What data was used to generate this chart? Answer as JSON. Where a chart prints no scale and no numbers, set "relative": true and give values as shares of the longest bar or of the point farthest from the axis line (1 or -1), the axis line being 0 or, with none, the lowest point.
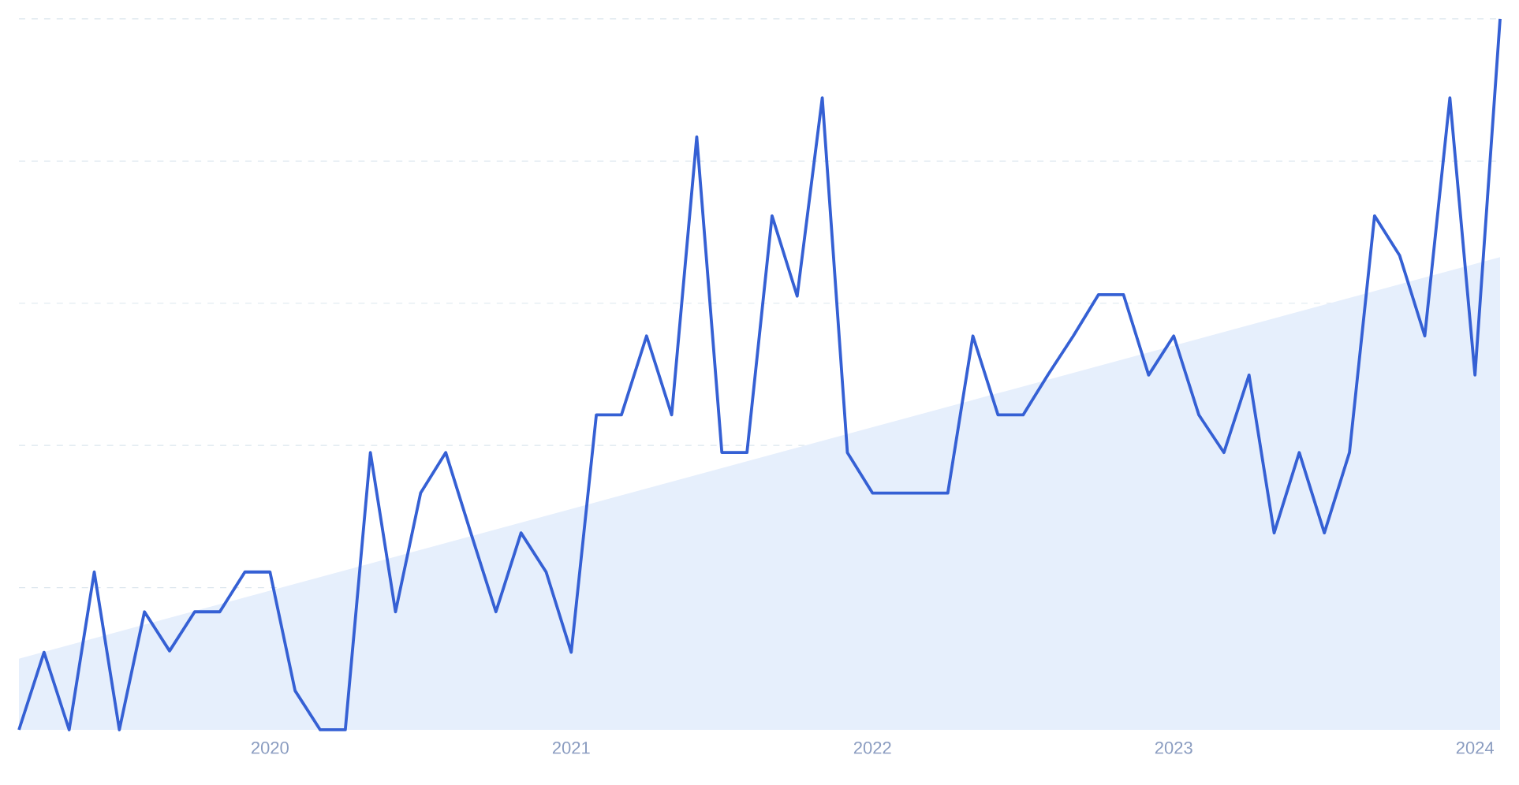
{
  "chart_data": {
    "type": "line",
    "relative": true,
    "grid": "y",
    "x": [
      "2019-03",
      "2019-04",
      "2019-05",
      "2019-06",
      "2019-07",
      "2019-08",
      "2019-09",
      "2019-10",
      "2019-11",
      "2019-12",
      "2020-01",
      "2020-02",
      "2020-03",
      "2020-04",
      "2020-05",
      "2020-06",
      "2020-07",
      "2020-08",
      "2020-09",
      "2020-10",
      "2020-11",
      "2020-12",
      "2021-01",
      "2021-02",
      "2021-03",
      "2021-04",
      "2021-05",
      "2021-06",
      "2021-07",
      "2021-08",
      "2021-09",
      "2021-10",
      "2021-11",
      "2021-12",
      "2022-01",
      "2022-02",
      "2022-03",
      "2022-04",
      "2022-05",
      "2022-06",
      "2022-07",
      "2022-08",
      "2022-09",
      "2022-10",
      "2022-11",
      "2022-12",
      "2023-01",
      "2023-02",
      "2023-03",
      "2023-04",
      "2023-05",
      "2023-06",
      "2023-07",
      "2023-08",
      "2023-09",
      "2023-10",
      "2023-11",
      "2023-12",
      "2024-01",
      "2024-02"
    ],
    "xlim": [
      "2019-03",
      "2024-02"
    ],
    "xticks": [
      {
        "value": "2020-01",
        "label": "2020"
      },
      {
        "value": "2021-01",
        "label": "2021"
      },
      {
        "value": "2022-01",
        "label": "2022"
      },
      {
        "value": "2023-01",
        "label": "2023"
      },
      {
        "value": "2024-01",
        "label": "2024"
      }
    ],
    "series": [
      {
        "type": "area",
        "color": "#e6effc",
        "x": [
          "2019-03",
          "2024-02"
        ],
        "values": [
          0.1,
          0.665
        ]
      },
      {
        "color": "#3560d4",
        "values": [
          0,
          0.109,
          0,
          0.222,
          0,
          0.166,
          0.111,
          0.166,
          0.166,
          0.222,
          0.222,
          0.055,
          0,
          0,
          0.39,
          0.166,
          0.333,
          0.39,
          0.277,
          0.166,
          0.277,
          0.222,
          0.109,
          0.443,
          0.443,
          0.554,
          0.443,
          0.834,
          0.39,
          0.39,
          0.723,
          0.61,
          0.889,
          0.39,
          0.333,
          0.333,
          0.333,
          0.333,
          0.554,
          0.443,
          0.443,
          0.5,
          0.554,
          0.612,
          0.612,
          0.499,
          0.554,
          0.443,
          0.39,
          0.499,
          0.277,
          0.39,
          0.277,
          0.39,
          0.723,
          0.667,
          0.554,
          0.889,
          0.499,
          1.0
        ]
      }
    ]
  }
}
